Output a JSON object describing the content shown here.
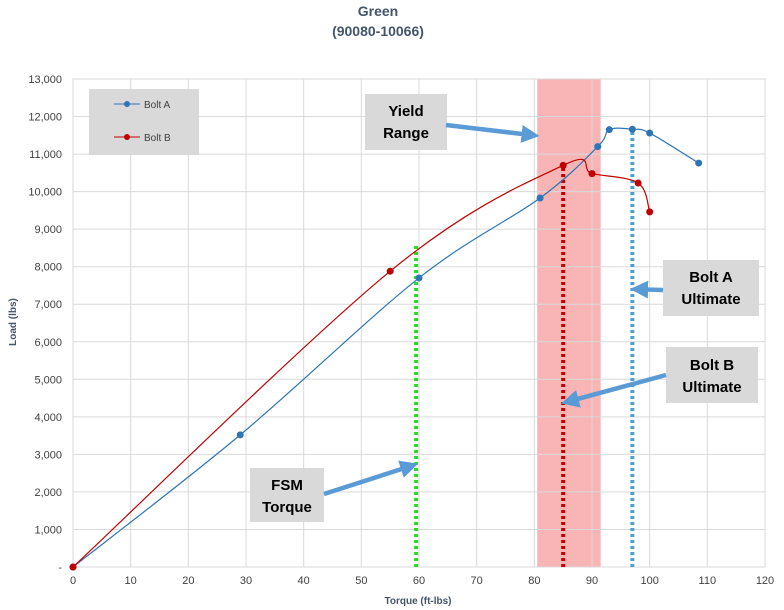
{
  "chart_data": {
    "type": "line",
    "title": "Green",
    "subtitle": "(90080-10066)",
    "xlabel": "Torque (ft-lbs)",
    "ylabel": "Load (lbs)",
    "xlim": [
      0,
      120
    ],
    "ylim": [
      0,
      13000
    ],
    "x_ticks": [
      "0",
      "10",
      "20",
      "30",
      "40",
      "50",
      "60",
      "70",
      "80",
      "90",
      "100",
      "110",
      "120"
    ],
    "y_ticks": [
      "-",
      "1,000",
      "2,000",
      "3,000",
      "4,000",
      "5,000",
      "6,000",
      "7,000",
      "8,000",
      "9,000",
      "10,000",
      "11,000",
      "12,000",
      "13,000"
    ],
    "grid": true,
    "legend_position": "top-left",
    "series": [
      {
        "name": "Bolt A",
        "color": "#2e75b6",
        "points": [
          [
            0,
            0
          ],
          [
            29,
            3520
          ],
          [
            60,
            7700
          ],
          [
            81,
            9830
          ],
          [
            91,
            11200
          ],
          [
            93,
            11650
          ],
          [
            97,
            11660
          ],
          [
            100,
            11560
          ],
          [
            108.5,
            10760
          ]
        ]
      },
      {
        "name": "Bolt B",
        "color": "#c00000",
        "points": [
          [
            0,
            0
          ],
          [
            55,
            7880
          ],
          [
            85,
            10700
          ],
          [
            90,
            10480
          ],
          [
            98,
            10230
          ],
          [
            100,
            9460
          ]
        ]
      }
    ],
    "yield_range": {
      "x_start": 80.5,
      "x_end": 91.5,
      "color": "#f8a8a8"
    },
    "reference_lines": [
      {
        "name": "FSM Torque",
        "x": 59.5,
        "y_top": 8600,
        "color": "#22dd22"
      },
      {
        "name": "Bolt B Ultimate",
        "x": 85,
        "y_top": 10700,
        "color": "#c00000"
      },
      {
        "name": "Bolt A Ultimate",
        "x": 97,
        "y_top": 11660,
        "color": "#4a9fd4"
      }
    ],
    "annotations": [
      {
        "id": "yield",
        "line1": "Yield",
        "line2": "Range",
        "target": [
          80.5,
          11500
        ]
      },
      {
        "id": "fsm",
        "line1": "FSM",
        "line2": "Torque",
        "target": [
          59.5,
          2700
        ]
      },
      {
        "id": "bolt-a",
        "line1": "Bolt A",
        "line2": "Ultimate",
        "target": [
          97,
          7400
        ]
      },
      {
        "id": "bolt-b",
        "line1": "Bolt B",
        "line2": "Ultimate",
        "target": [
          85,
          4400
        ]
      }
    ]
  }
}
